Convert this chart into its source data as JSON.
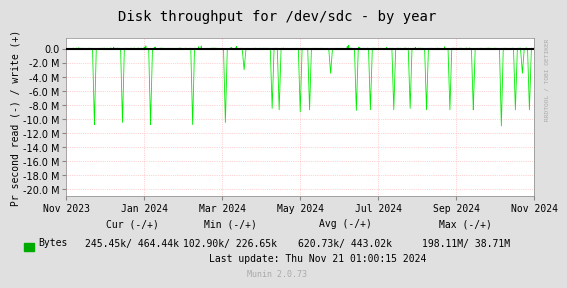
{
  "title": "Disk throughput for /dev/sdc - by year",
  "ylabel": "Pr second read (-) / write (+)",
  "xlabel_ticks": [
    "Nov 2023",
    "Jan 2024",
    "Mar 2024",
    "May 2024",
    "Jul 2024",
    "Sep 2024",
    "Nov 2024"
  ],
  "yticks": [
    0.0,
    -2.0,
    -4.0,
    -6.0,
    -8.0,
    -10.0,
    -12.0,
    -14.0,
    -16.0,
    -18.0,
    -20.0
  ],
  "ylim": [
    -21000000,
    1500000
  ],
  "bg_color": "#e0e0e0",
  "plot_bg_color": "#ffffff",
  "grid_color": "#ffaaaa",
  "line_color": "#00ee00",
  "zero_line_color": "#000000",
  "legend_label": "Bytes",
  "legend_color": "#00aa00",
  "cur_neg": "245.45k",
  "cur_pos": "464.44k",
  "min_neg": "102.90k",
  "min_pos": "226.65k",
  "avg_neg": "620.73k",
  "avg_pos": "443.02k",
  "max_neg": "198.11M",
  "max_pos": "38.71M",
  "last_update": "Last update: Thu Nov 21 01:00:15 2024",
  "munin_version": "Munin 2.0.73",
  "rrdtool_label": "RRDTOOL / TOBI OETIKER",
  "title_fontsize": 10,
  "axis_label_fontsize": 7,
  "tick_fontsize": 7,
  "legend_fontsize": 7,
  "annotation_fontsize": 6,
  "spike_positions": [
    0.06,
    0.12,
    0.18,
    0.27,
    0.34,
    0.38,
    0.44,
    0.455,
    0.5,
    0.52,
    0.565,
    0.62,
    0.65,
    0.7,
    0.735,
    0.77,
    0.82,
    0.87,
    0.93,
    0.96,
    0.975,
    0.99
  ],
  "spike_depths": [
    -10800000,
    -10500000,
    -10800000,
    -10800000,
    -10500000,
    -3000000,
    -8500000,
    -8700000,
    -9000000,
    -8700000,
    -3500000,
    -8800000,
    -8700000,
    -8700000,
    -8500000,
    -8700000,
    -8700000,
    -8700000,
    -11000000,
    -8700000,
    -3500000,
    -8700000
  ]
}
